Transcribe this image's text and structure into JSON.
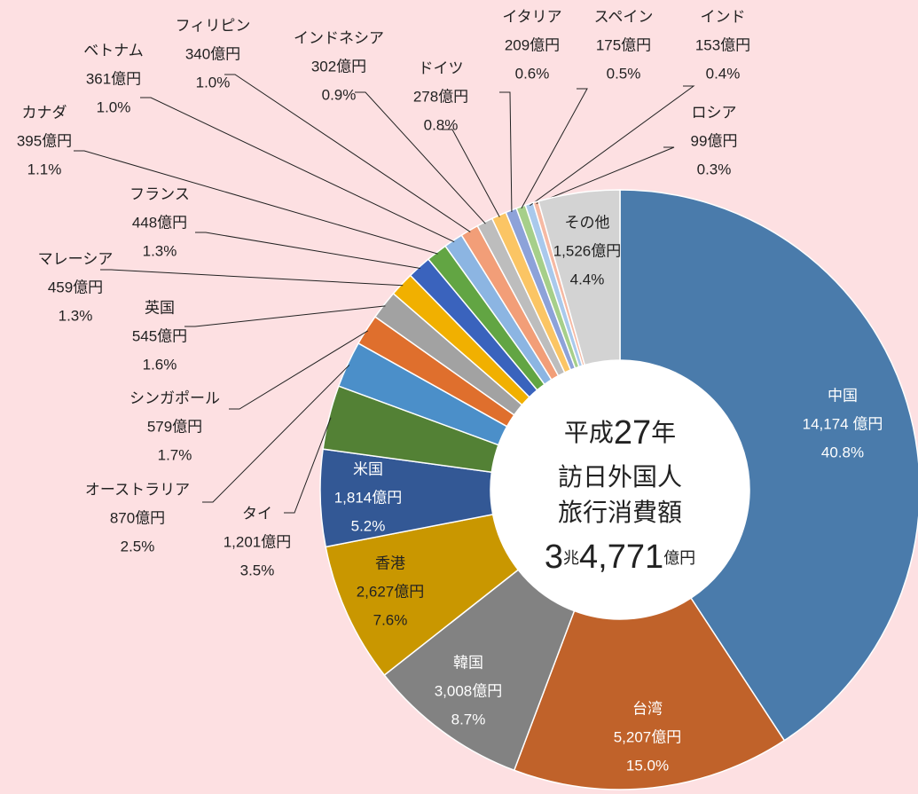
{
  "chart_data": {
    "type": "pie",
    "categories": [
      "中国",
      "台湾",
      "韓国",
      "香港",
      "米国",
      "タイ",
      "オーストラリア",
      "シンガポール",
      "英国",
      "マレーシア",
      "フランス",
      "カナダ",
      "ベトナム",
      "フィリピン",
      "インドネシア",
      "ドイツ",
      "イタリア",
      "スペイン",
      "インド",
      "ロシア",
      "その他"
    ],
    "values": [
      14174,
      5207,
      3008,
      2627,
      1814,
      1201,
      870,
      579,
      545,
      459,
      448,
      395,
      361,
      340,
      302,
      278,
      209,
      175,
      153,
      99,
      1526
    ],
    "value_labels": [
      "14,174 億円",
      "5,207億円",
      "3,008億円",
      "2,627億円",
      "1,814億円",
      "1,201億円",
      "870億円",
      "579億円",
      "545億円",
      "459億円",
      "448億円",
      "395億円",
      "361億円",
      "340億円",
      "302億円",
      "278億円",
      "209億円",
      "175億円",
      "153億円",
      "99億円",
      "1,526億円"
    ],
    "percents": [
      40.8,
      15.0,
      8.7,
      7.6,
      5.2,
      3.5,
      2.5,
      1.7,
      1.6,
      1.3,
      1.3,
      1.1,
      1.0,
      1.0,
      0.9,
      0.8,
      0.6,
      0.5,
      0.4,
      0.3,
      4.4
    ],
    "percent_labels": [
      "40.8%",
      "15.0%",
      "8.7%",
      "7.6%",
      "5.2%",
      "3.5%",
      "2.5%",
      "1.7%",
      "1.6%",
      "1.3%",
      "1.3%",
      "1.1%",
      "1.0%",
      "1.0%",
      "0.9%",
      "0.8%",
      "0.6%",
      "0.5%",
      "0.4%",
      "0.3%",
      "4.4%"
    ],
    "colors": [
      "#4a7bab",
      "#c0622a",
      "#828282",
      "#c99700",
      "#335895",
      "#538135",
      "#4b8fc9",
      "#df6f2d",
      "#a2a2a2",
      "#f1b000",
      "#3a63bd",
      "#62a543",
      "#8cb5e2",
      "#f29e78",
      "#bdbdbd",
      "#fbc564",
      "#8da2d9",
      "#a6cf8a",
      "#a9c9ec",
      "#f6b9a3",
      "#d3d3d3"
    ],
    "donut": true,
    "center_text": [
      [
        "平成",
        "27",
        "年"
      ],
      [
        "訪日外国人"
      ],
      [
        "旅行消費額"
      ],
      [
        "3",
        "兆",
        "4,771",
        "億円"
      ]
    ]
  }
}
